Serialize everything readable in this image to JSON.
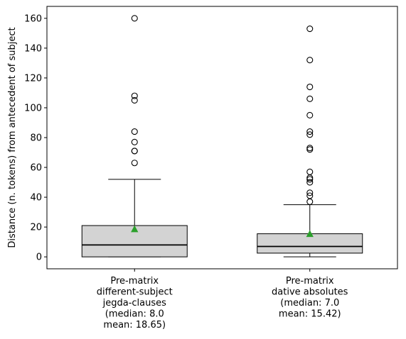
{
  "chart_data": {
    "type": "box",
    "title": "",
    "xlabel": "",
    "ylabel": "Distance (n. tokens) from antecedent of subject",
    "ylim": [
      -8,
      168
    ],
    "yticks": [
      0,
      20,
      40,
      60,
      80,
      100,
      120,
      140,
      160
    ],
    "grid": false,
    "colors": {
      "box_fill": "#d3d3d3",
      "box_edge": "#000000",
      "mean_marker": "#2ca02c",
      "outlier_edge": "#000000"
    },
    "boxes": [
      {
        "label_lines": [
          "Pre-matrix",
          "different-subject",
          "jegda-clauses",
          "(median: 8.0",
          "mean: 18.65)"
        ],
        "whisker_low": 0,
        "q1": 0,
        "median": 8.0,
        "q3": 21,
        "whisker_high": 52,
        "mean": 18.65,
        "outliers": [
          63,
          71,
          71,
          77,
          84,
          105,
          108,
          160
        ]
      },
      {
        "label_lines": [
          "Pre-matrix",
          "dative absolutes",
          "(median: 7.0",
          "mean: 15.42)"
        ],
        "whisker_low": 0,
        "q1": 2.5,
        "median": 7.0,
        "q3": 15.5,
        "whisker_high": 35,
        "mean": 15.42,
        "outliers": [
          37,
          41,
          43,
          50,
          52,
          53,
          57,
          72,
          73,
          82,
          84,
          95,
          106,
          114,
          132,
          153
        ]
      }
    ]
  }
}
